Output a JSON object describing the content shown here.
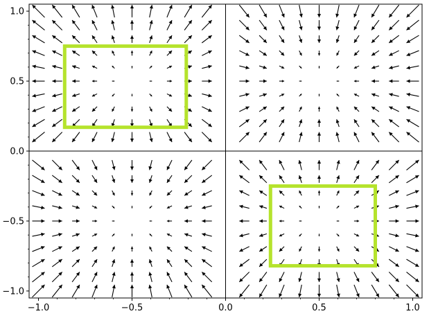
{
  "chart_data": {
    "type": "quiver",
    "title": "",
    "xlabel": "",
    "ylabel": "",
    "xlim": [
      -1.05,
      1.05
    ],
    "ylim": [
      -1.05,
      1.05
    ],
    "grid": false,
    "xticks": [
      -1.0,
      -0.5,
      0.0,
      0.5,
      1.0
    ],
    "yticks": [
      -1.0,
      -0.5,
      0.0,
      0.5,
      1.0
    ],
    "xtick_labels": [
      "−1.0",
      "−0.5",
      "0.0",
      "0.5",
      "1.0"
    ],
    "ytick_labels": [
      "−1.0",
      "−0.5",
      "0.0",
      "0.5",
      "1.0"
    ],
    "vector_field": {
      "description": "arrows point away from sinks at (-0.5, 0.5) and (0.5, -0.5), toward sources near (0.5, 0.5) and (-0.5, -0.5)",
      "grid_x": {
        "start": -1.0,
        "stop": 1.0,
        "count": 21
      },
      "grid_y": {
        "start": -1.0,
        "stop": 1.0,
        "count": 21
      },
      "centers": [
        {
          "x": -0.5,
          "y": 0.5,
          "kind": "divergent"
        },
        {
          "x": 0.5,
          "y": -0.5,
          "kind": "divergent"
        },
        {
          "x": 0.5,
          "y": 0.5,
          "kind": "convergent"
        },
        {
          "x": -0.5,
          "y": -0.5,
          "kind": "convergent"
        }
      ]
    },
    "highlight_boxes": [
      {
        "x0": -0.86,
        "x1": -0.21,
        "y0": 0.17,
        "y1": 0.75,
        "color": "#b5e32d"
      },
      {
        "x0": 0.24,
        "x1": 0.8,
        "y0": -0.82,
        "y1": -0.25,
        "color": "#b5e32d"
      }
    ],
    "axes_color": "#000000",
    "arrow_color": "#000000"
  }
}
